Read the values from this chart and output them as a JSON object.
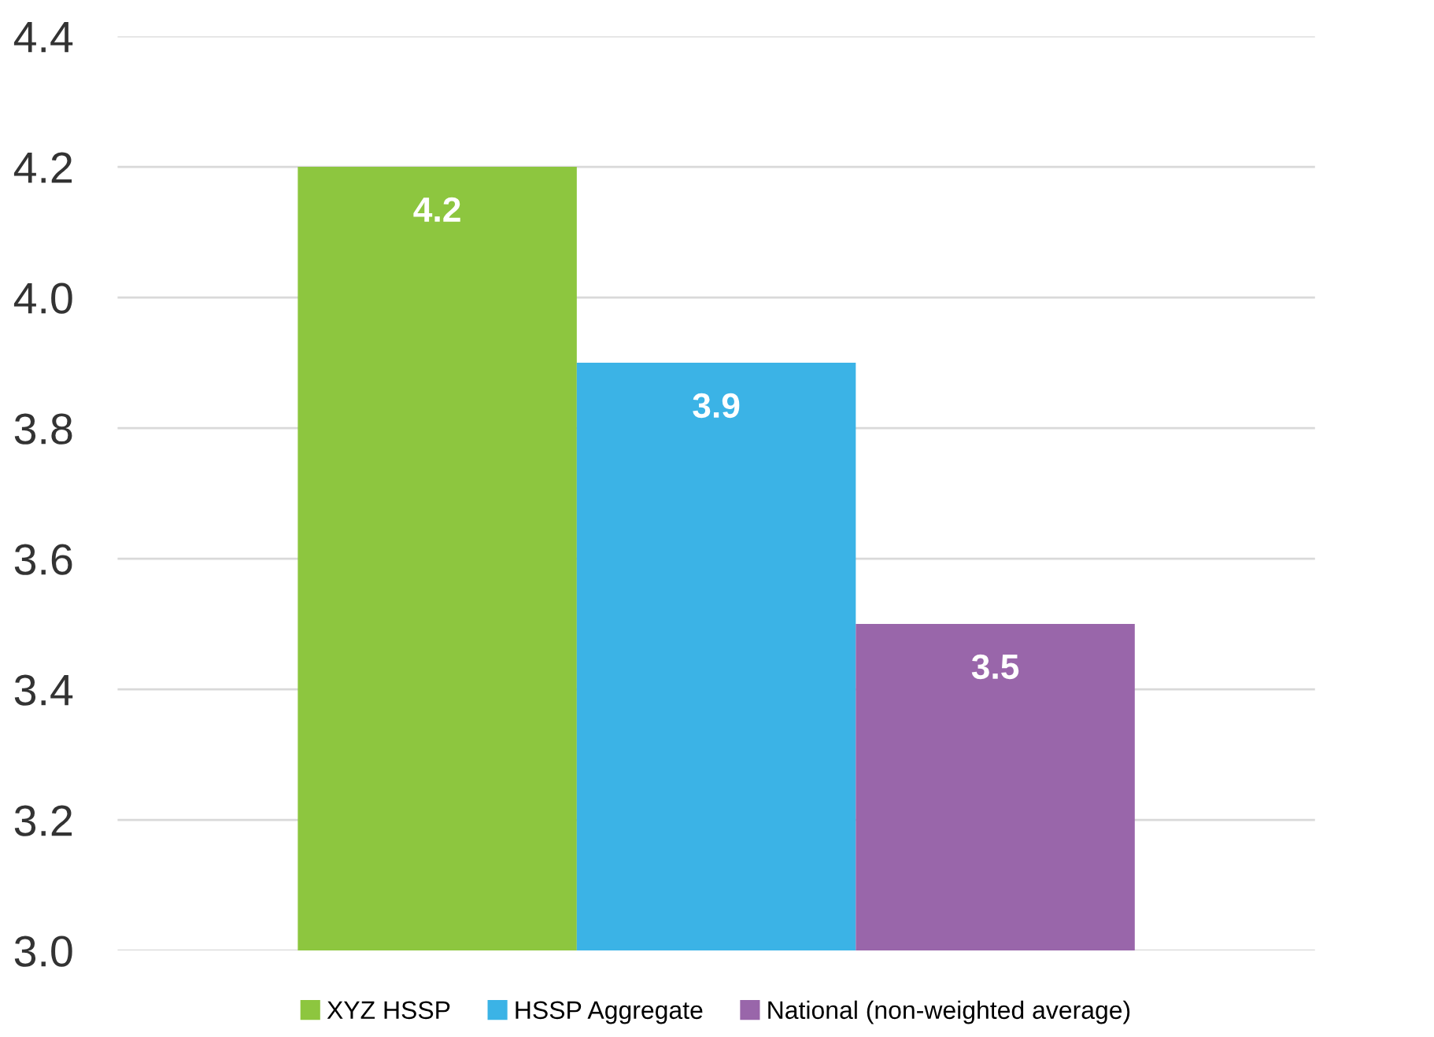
{
  "chart_data": {
    "type": "bar",
    "categories": [
      null
    ],
    "series": [
      {
        "name": "XYZ HSSP",
        "color": "#8dc63f",
        "values": [
          4.2
        ]
      },
      {
        "name": "HSSP Aggregate",
        "color": "#3bb3e6",
        "values": [
          3.9
        ]
      },
      {
        "name": "National (non-weighted average)",
        "color": "#9966aa",
        "values": [
          3.5
        ]
      }
    ],
    "ylim": [
      3.0,
      4.4
    ],
    "yticks": [
      {
        "value": 3.0,
        "label": "3.0"
      },
      {
        "value": 3.2,
        "label": "3.2"
      },
      {
        "value": 3.4,
        "label": "3.4"
      },
      {
        "value": 3.6,
        "label": "3.6"
      },
      {
        "value": 3.8,
        "label": "3.8"
      },
      {
        "value": 4.0,
        "label": "4.0"
      },
      {
        "value": 4.2,
        "label": "4.2"
      },
      {
        "value": 4.4,
        "label": "4.4"
      }
    ],
    "grid": "y",
    "legend": "bottom",
    "data_labels": true,
    "tick_labels": "y"
  }
}
